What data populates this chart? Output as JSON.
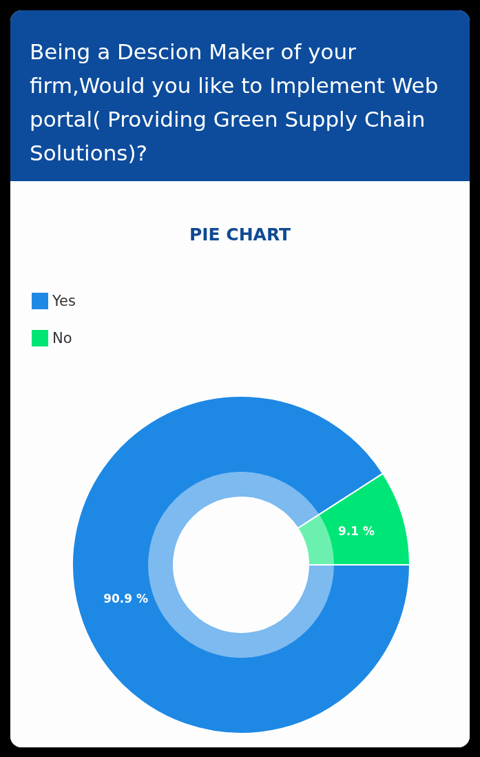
{
  "chart_data": {
    "type": "donut",
    "title": " Being a Descion Maker of your firm,Would you like to Implement Web portal( Providing Green Supply Chain Solutions)?",
    "subtitle": "PIE CHART",
    "categories": [
      "Yes",
      "No"
    ],
    "values": [
      90.9,
      9.1
    ],
    "colors": [
      "#1e88e5",
      "#00e676"
    ],
    "value_labels": [
      "90.9 %",
      "9.1 %"
    ],
    "legend": "top left"
  }
}
